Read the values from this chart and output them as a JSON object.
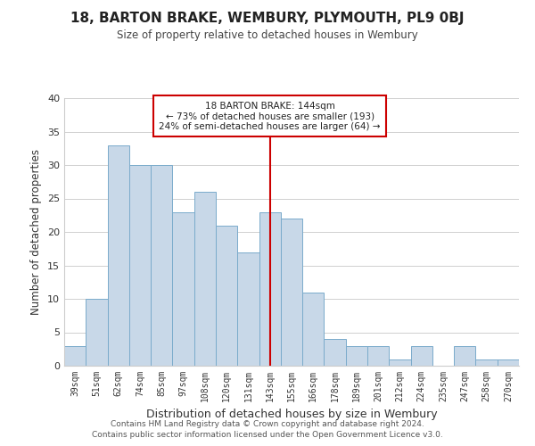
{
  "title": "18, BARTON BRAKE, WEMBURY, PLYMOUTH, PL9 0BJ",
  "subtitle": "Size of property relative to detached houses in Wembury",
  "xlabel": "Distribution of detached houses by size in Wembury",
  "ylabel": "Number of detached properties",
  "bar_labels": [
    "39sqm",
    "51sqm",
    "62sqm",
    "74sqm",
    "85sqm",
    "97sqm",
    "108sqm",
    "120sqm",
    "131sqm",
    "143sqm",
    "155sqm",
    "166sqm",
    "178sqm",
    "189sqm",
    "201sqm",
    "212sqm",
    "224sqm",
    "235sqm",
    "247sqm",
    "258sqm",
    "270sqm"
  ],
  "bar_values": [
    3,
    10,
    33,
    30,
    30,
    23,
    26,
    21,
    17,
    23,
    22,
    11,
    4,
    3,
    3,
    1,
    3,
    0,
    3,
    1,
    1
  ],
  "bar_color": "#c8d8e8",
  "bar_edge_color": "#7aabcb",
  "highlight_index": 9,
  "highlight_line_color": "#cc0000",
  "ylim": [
    0,
    40
  ],
  "yticks": [
    0,
    5,
    10,
    15,
    20,
    25,
    30,
    35,
    40
  ],
  "annotation_title": "18 BARTON BRAKE: 144sqm",
  "annotation_line1": "← 73% of detached houses are smaller (193)",
  "annotation_line2": "24% of semi-detached houses are larger (64) →",
  "annotation_box_color": "#ffffff",
  "annotation_box_edge": "#cc0000",
  "footer_line1": "Contains HM Land Registry data © Crown copyright and database right 2024.",
  "footer_line2": "Contains public sector information licensed under the Open Government Licence v3.0.",
  "background_color": "#ffffff",
  "grid_color": "#d0d0d0"
}
